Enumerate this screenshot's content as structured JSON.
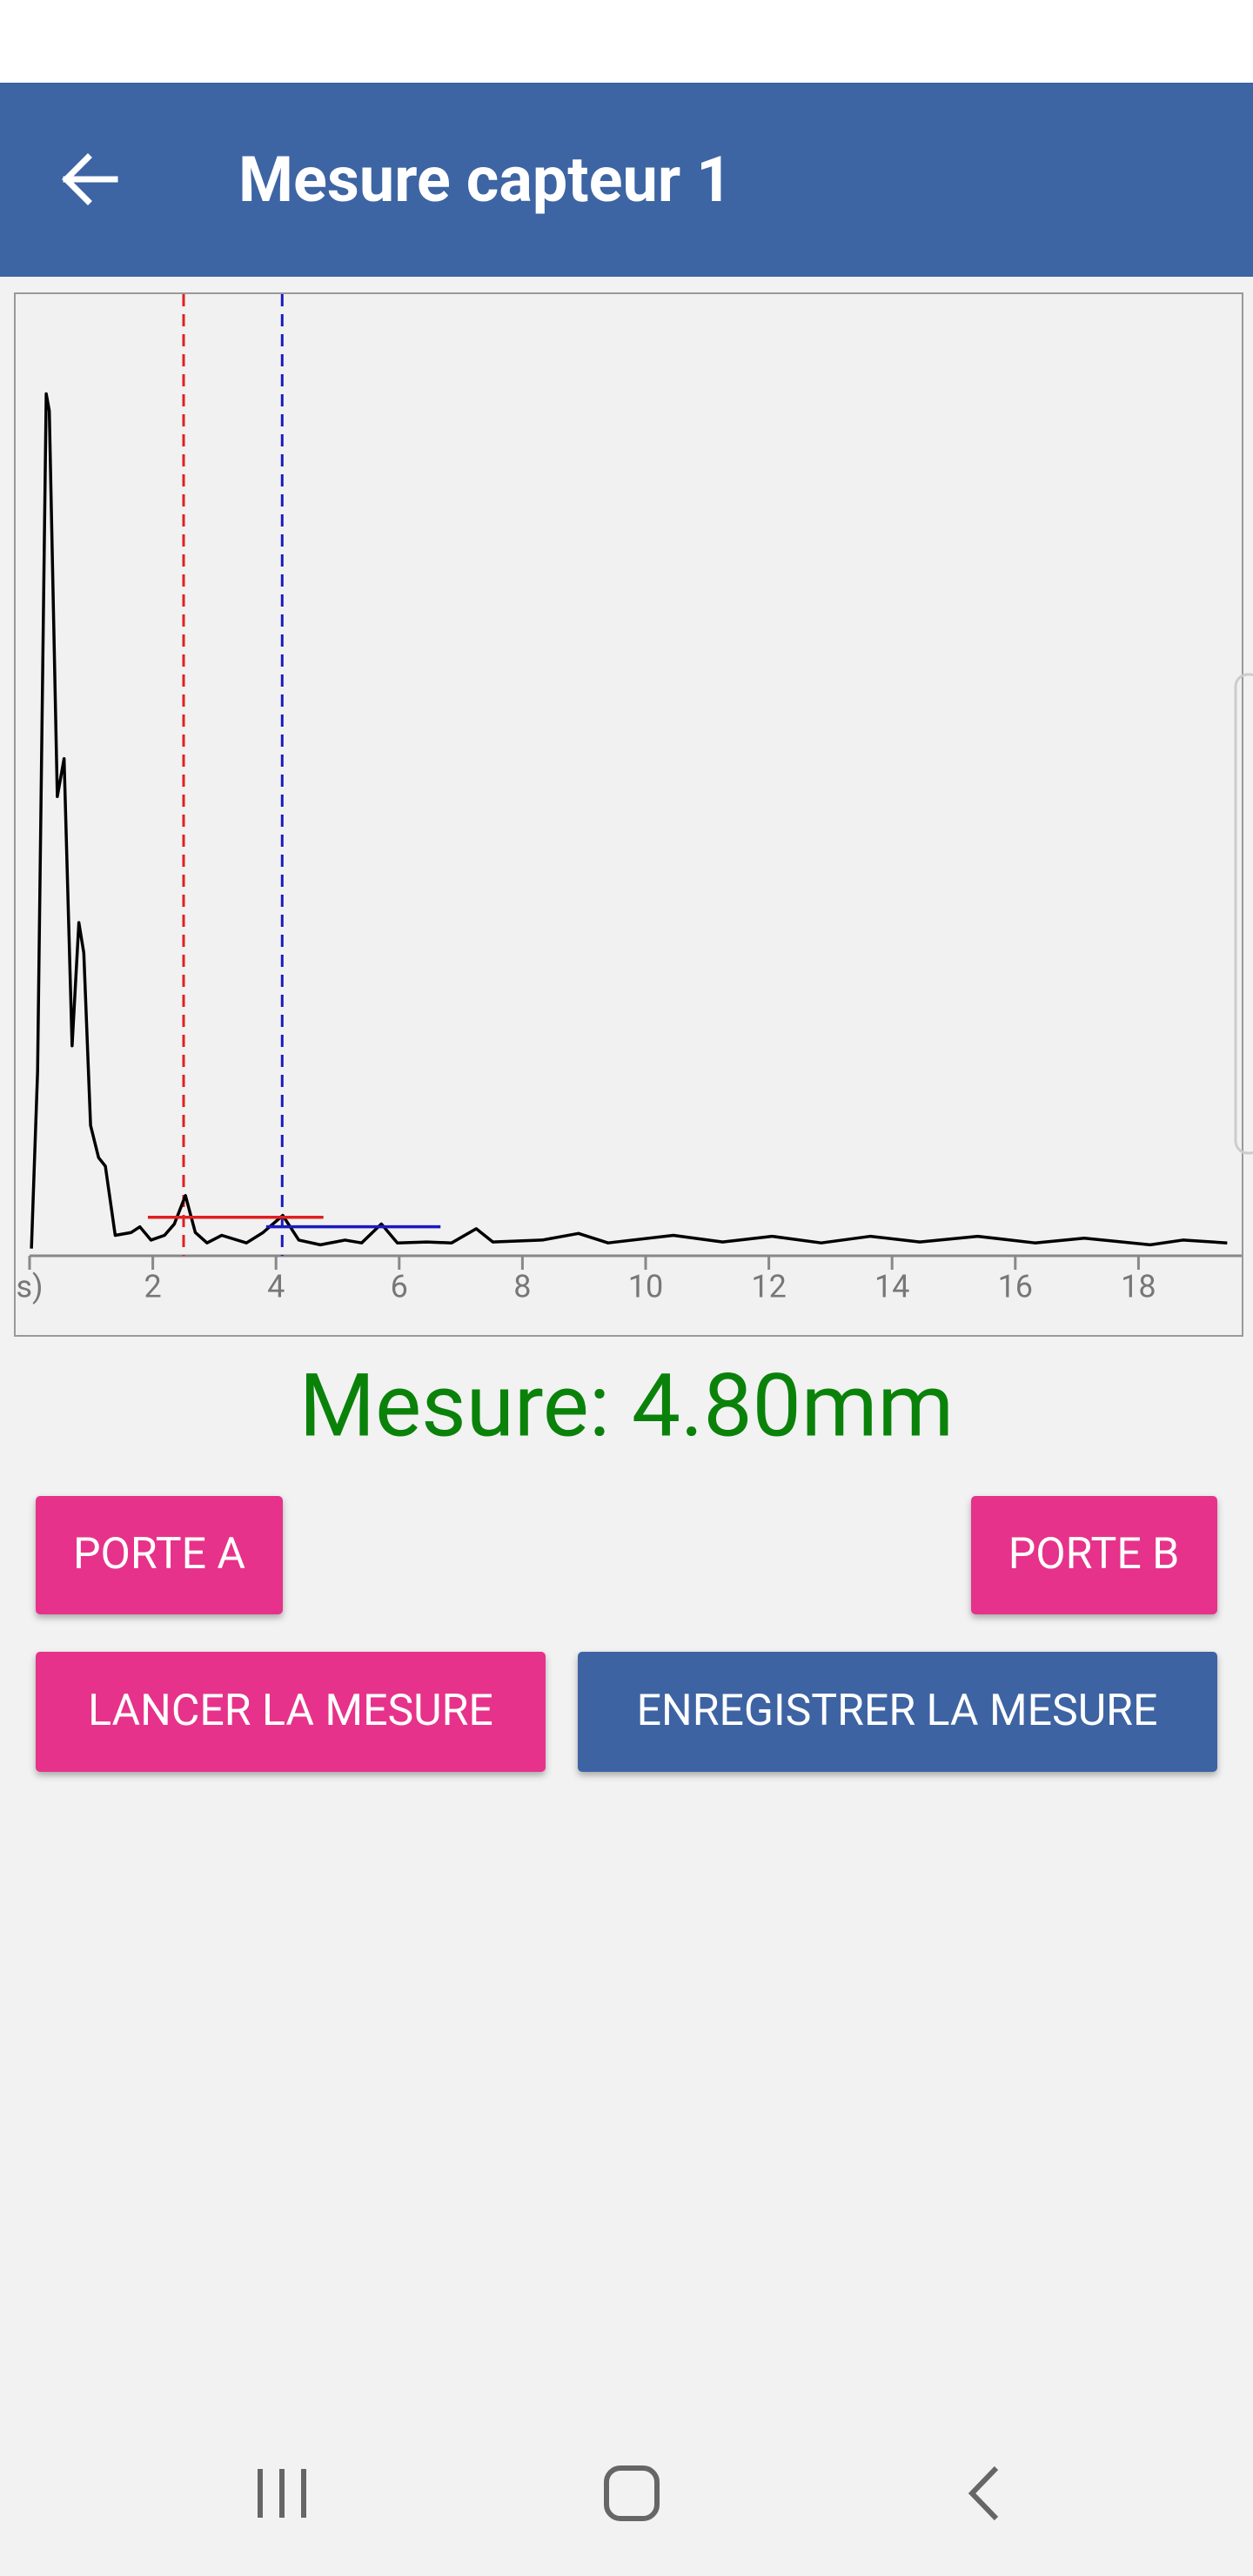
{
  "app_bar": {
    "title": "Mesure capteur 1"
  },
  "chart_data": {
    "type": "line",
    "x": [
      0.03,
      0.13,
      0.27,
      0.32,
      0.45,
      0.56,
      0.69,
      0.8,
      0.88,
      0.99,
      1.12,
      1.23,
      1.39,
      1.65,
      1.79,
      1.97,
      2.19,
      2.35,
      2.53,
      2.69,
      2.88,
      3.12,
      3.52,
      3.79,
      4.11,
      4.37,
      4.72,
      5.12,
      5.39,
      5.71,
      5.97,
      6.45,
      6.85,
      7.25,
      7.52,
      8.32,
      8.91,
      9.39,
      10.45,
      11.25,
      12.05,
      12.85,
      13.65,
      14.45,
      15.39,
      16.32,
      17.12,
      18.19,
      18.72,
      19.44
    ],
    "series": [
      {
        "color": "#000000",
        "values": [
          0.3,
          19,
          90.5,
          88.7,
          48,
          52,
          21.7,
          34.7,
          31.5,
          13.3,
          9.9,
          9,
          1.7,
          2,
          2.6,
          1.2,
          1.7,
          2.9,
          5.9,
          2,
          0.9,
          1.7,
          0.9,
          2,
          3.8,
          1.2,
          0.7,
          1.2,
          0.9,
          2.9,
          0.9,
          1,
          0.9,
          2.4,
          1,
          1.2,
          1.9,
          0.9,
          1.7,
          1,
          1.6,
          0.9,
          1.6,
          1,
          1.6,
          0.9,
          1.4,
          0.7,
          1.2,
          0.9
        ]
      }
    ],
    "xlim": [
      0,
      20
    ],
    "ylim": [
      0,
      100
    ],
    "xticks": [
      {
        "value": 0,
        "label": "s)"
      },
      2,
      4,
      6,
      8,
      10,
      12,
      14,
      16,
      18,
      20
    ],
    "gates": [
      {
        "color": "#e02020",
        "x": 2.5,
        "start": 1.92,
        "end": 4.77,
        "level": 3.6
      },
      {
        "color": "#1a1ac0",
        "x": 4.1,
        "start": 3.84,
        "end": 6.67,
        "level": 2.6
      }
    ]
  },
  "measure": "Mesure: 4.80mm",
  "buttons": [
    "PORTE A",
    "PORTE B",
    "LANCER LA MESURE",
    "ENREGISTRER LA MESURE"
  ]
}
